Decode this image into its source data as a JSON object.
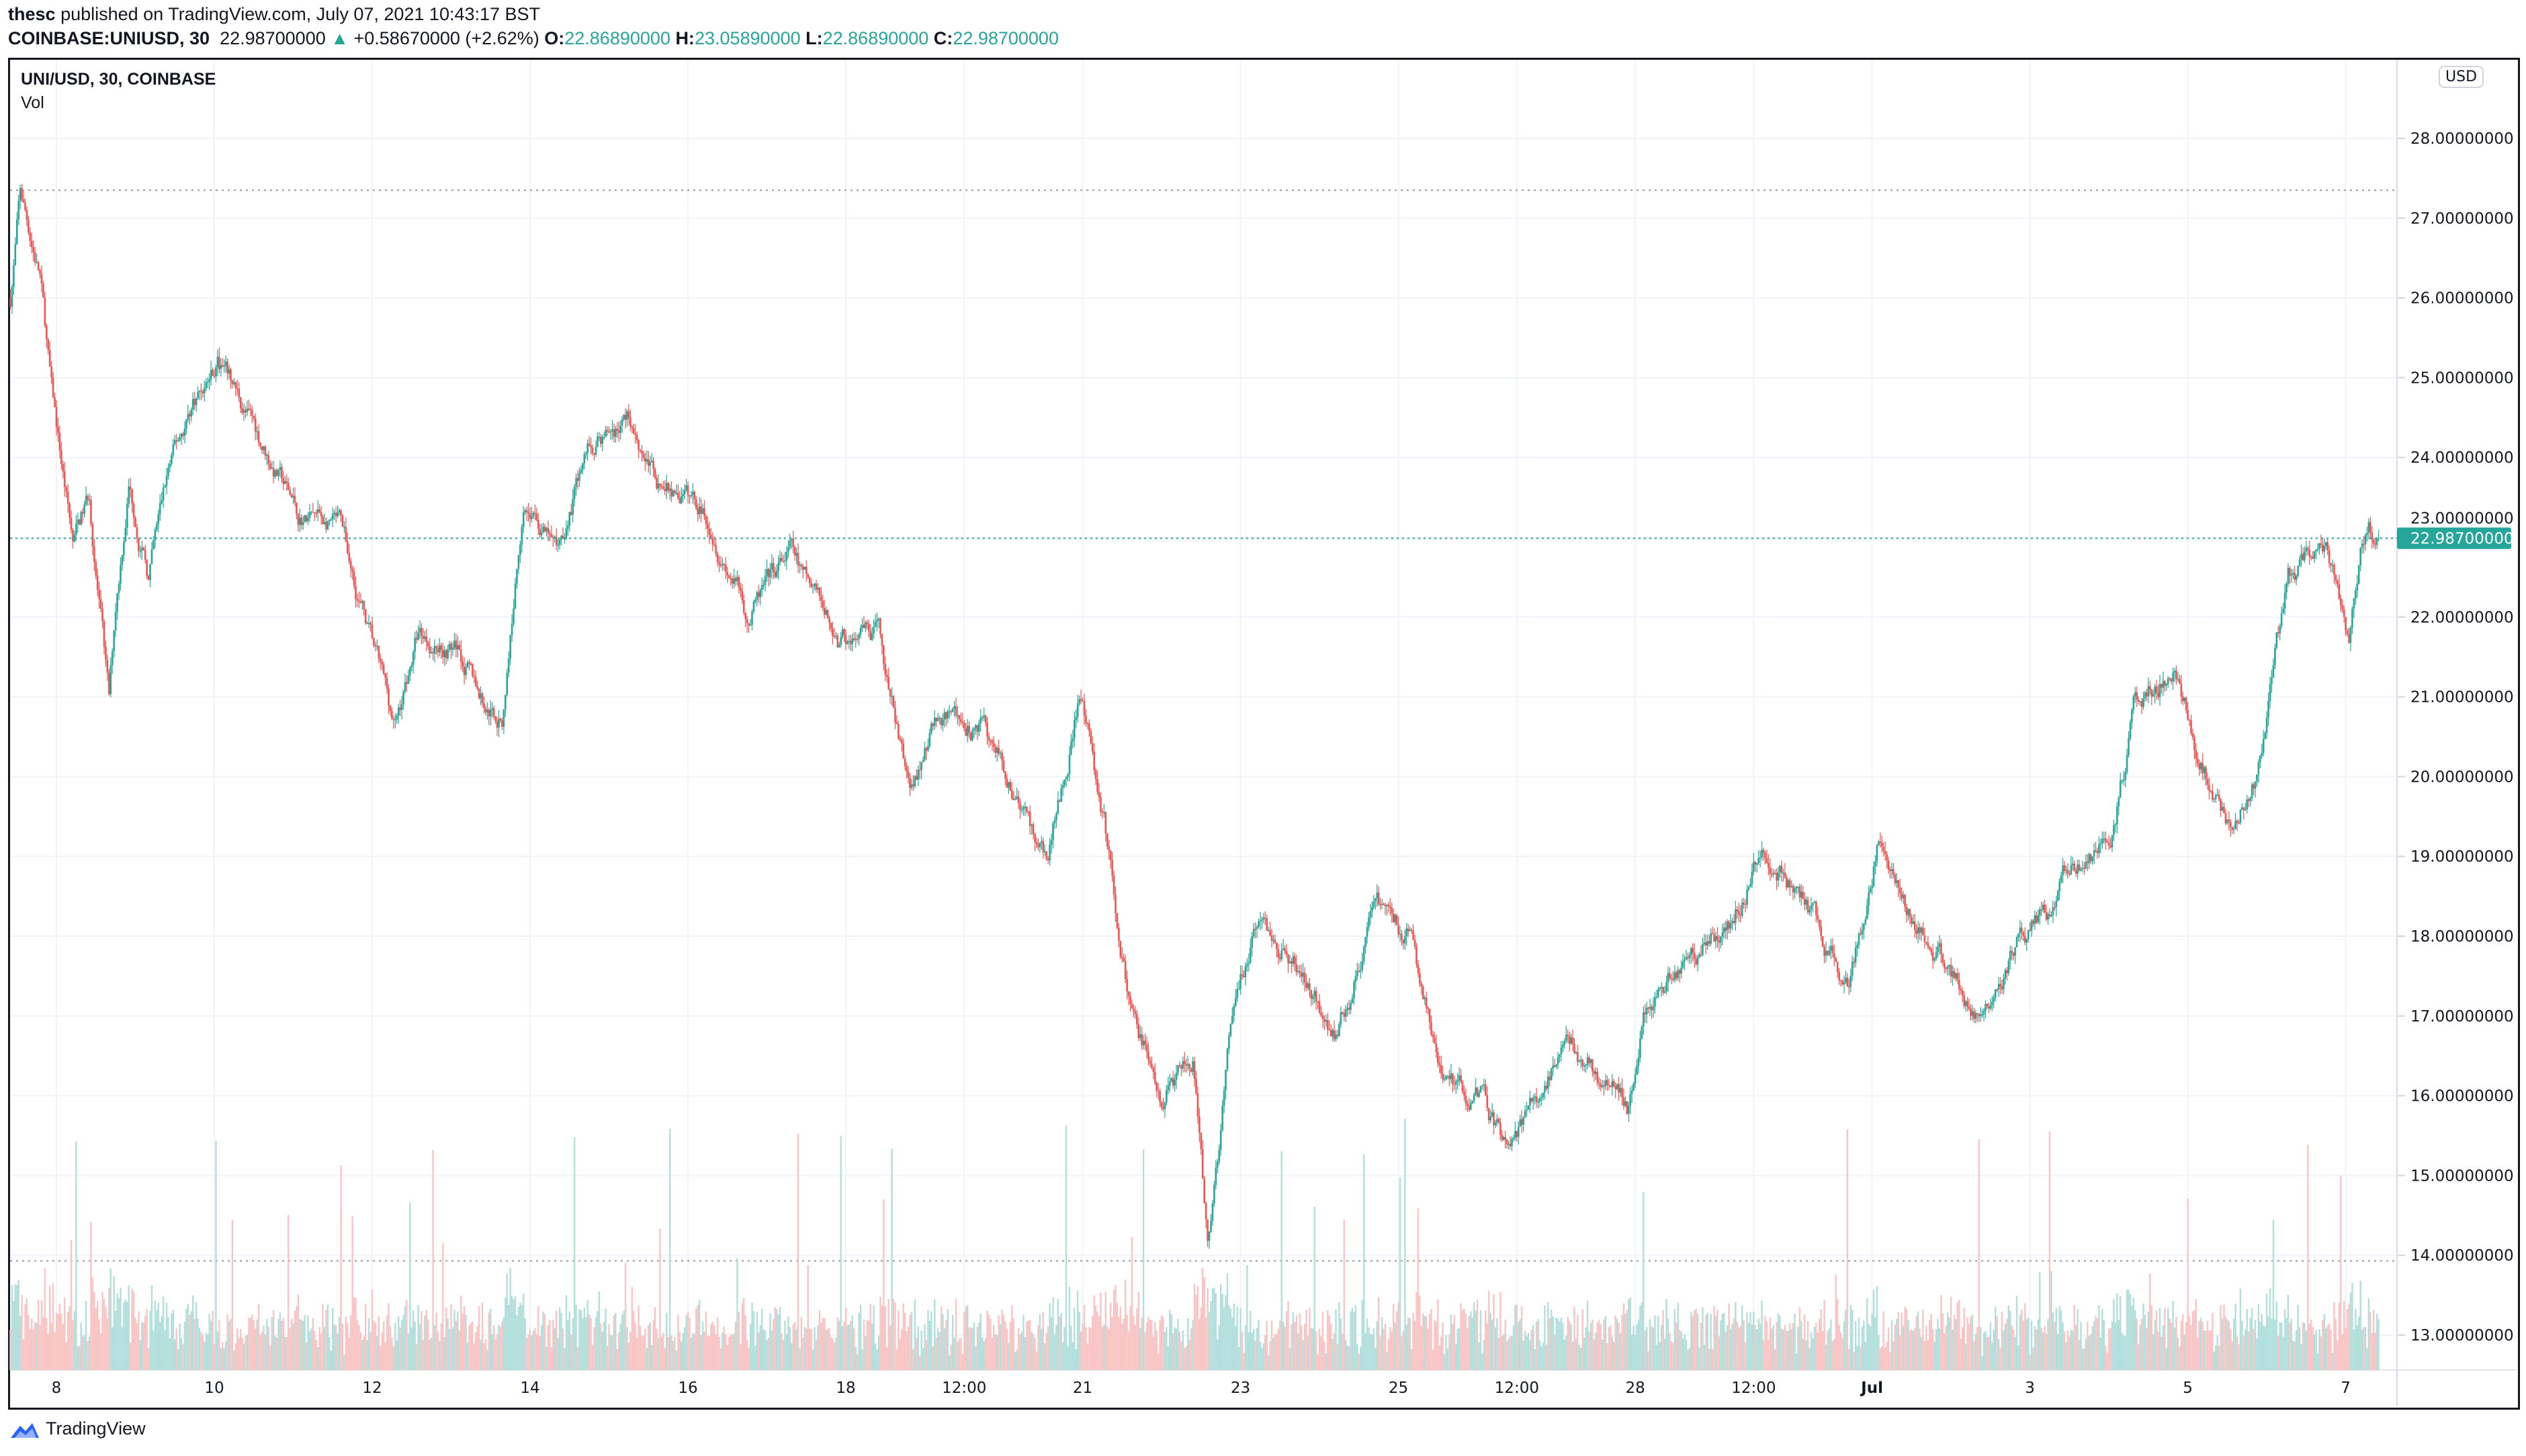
{
  "header": {
    "author": "thesc",
    "published": "published on TradingView.com, July 07, 2021 10:43:17 BST",
    "symbol": "COINBASE:UNIUSD, 30",
    "last": "22.98700000",
    "change": "+0.58670000 (+2.62%)",
    "o_label": "O:",
    "o": "22.86890000",
    "h_label": "H:",
    "h": "23.05890000",
    "l_label": "L:",
    "l": "22.86890000",
    "c_label": "C:",
    "c": "22.98700000",
    "direction_icon": "triangle-up-icon"
  },
  "legend": {
    "title": "UNI/USD, 30, COINBASE",
    "volume": "Vol"
  },
  "currency_badge": "USD",
  "footer": {
    "brand": "TradingView",
    "logo_icon": "tradingview-cloud-icon"
  },
  "colors": {
    "up": "#26a69a",
    "down": "#ef5350",
    "up_volume": "#b2dfdb",
    "down_volume": "#f8c5c4",
    "grid": "#f0f3fa"
  },
  "chart_data": {
    "type": "candlestick",
    "interval": "30 minutes",
    "ylim": [
      12.5,
      28.8
    ],
    "y_ticks": [
      "28.00000000",
      "27.00000000",
      "26.00000000",
      "25.00000000",
      "24.00000000",
      "23.00000000",
      "22.00000000",
      "21.00000000",
      "20.00000000",
      "19.00000000",
      "18.00000000",
      "17.00000000",
      "16.00000000",
      "15.00000000",
      "14.00000000",
      "13.00000000"
    ],
    "x_ticks": [
      {
        "label": "8",
        "t": "2021-06-08T00:00"
      },
      {
        "label": "10",
        "t": "2021-06-10T00:00"
      },
      {
        "label": "12",
        "t": "2021-06-12T00:00"
      },
      {
        "label": "14",
        "t": "2021-06-14T00:00"
      },
      {
        "label": "16",
        "t": "2021-06-16T00:00"
      },
      {
        "label": "18",
        "t": "2021-06-18T00:00"
      },
      {
        "label": "12:00",
        "t": "2021-06-19T12:00"
      },
      {
        "label": "21",
        "t": "2021-06-21T00:00"
      },
      {
        "label": "23",
        "t": "2021-06-23T00:00"
      },
      {
        "label": "25",
        "t": "2021-06-25T00:00"
      },
      {
        "label": "12:00",
        "t": "2021-06-26T12:00"
      },
      {
        "label": "28",
        "t": "2021-06-28T00:00"
      },
      {
        "label": "12:00",
        "t": "2021-06-29T12:00"
      },
      {
        "label": "Jul",
        "t": "2021-07-01T00:00"
      },
      {
        "label": "3",
        "t": "2021-07-03T00:00"
      },
      {
        "label": "5",
        "t": "2021-07-05T00:00"
      },
      {
        "label": "7",
        "t": "2021-07-07T00:00"
      }
    ],
    "last_price": 22.987,
    "last_price_label": "22.98700000",
    "range_high": 27.35,
    "range_low": 13.93,
    "price_path": [
      [
        "2021-06-07T10:00",
        26.0
      ],
      [
        "2021-06-07T13:00",
        27.3
      ],
      [
        "2021-06-07T19:00",
        26.3
      ],
      [
        "2021-06-07T22:30",
        24.8
      ],
      [
        "2021-06-08T05:00",
        22.9
      ],
      [
        "2021-06-08T10:00",
        23.5
      ],
      [
        "2021-06-08T16:00",
        20.9
      ],
      [
        "2021-06-08T18:00",
        22.1
      ],
      [
        "2021-06-08T22:00",
        23.7
      ],
      [
        "2021-06-09T04:00",
        22.5
      ],
      [
        "2021-06-09T10:00",
        23.8
      ],
      [
        "2021-06-09T17:30",
        24.7
      ],
      [
        "2021-06-10T01:00",
        25.2
      ],
      [
        "2021-06-10T13:00",
        24.3
      ],
      [
        "2021-06-11T01:30",
        23.3
      ],
      [
        "2021-06-11T14:00",
        23.1
      ],
      [
        "2021-06-11T21:00",
        22.1
      ],
      [
        "2021-06-12T07:00",
        20.6
      ],
      [
        "2021-06-12T14:00",
        21.8
      ],
      [
        "2021-06-13T02:30",
        21.6
      ],
      [
        "2021-06-13T10:00",
        20.9
      ],
      [
        "2021-06-13T15:30",
        20.7
      ],
      [
        "2021-06-13T22:00",
        23.5
      ],
      [
        "2021-06-14T08:00",
        22.8
      ],
      [
        "2021-06-14T17:30",
        24.1
      ],
      [
        "2021-06-15T06:00",
        24.5
      ],
      [
        "2021-06-15T15:30",
        23.7
      ],
      [
        "2021-06-16T06:30",
        23.3
      ],
      [
        "2021-06-16T18:30",
        22.0
      ],
      [
        "2021-06-17T07:00",
        22.8
      ],
      [
        "2021-06-17T21:30",
        21.7
      ],
      [
        "2021-06-18T10:00",
        21.7
      ],
      [
        "2021-06-18T19:30",
        19.8
      ],
      [
        "2021-06-19T03:00",
        20.7
      ],
      [
        "2021-06-19T17:30",
        20.6
      ],
      [
        "2021-06-20T03:30",
        19.8
      ],
      [
        "2021-06-20T13:00",
        18.9
      ],
      [
        "2021-06-20T23:00",
        21.0
      ],
      [
        "2021-06-21T06:30",
        19.5
      ],
      [
        "2021-06-21T14:00",
        17.2
      ],
      [
        "2021-06-21T23:30",
        16.0
      ],
      [
        "2021-06-22T09:30",
        16.4
      ],
      [
        "2021-06-22T14:00",
        14.0
      ],
      [
        "2021-06-22T21:30",
        17.0
      ],
      [
        "2021-06-23T05:00",
        18.2
      ],
      [
        "2021-06-23T14:30",
        17.8
      ],
      [
        "2021-06-24T05:30",
        16.8
      ],
      [
        "2021-06-24T17:30",
        18.4
      ],
      [
        "2021-06-25T03:30",
        18.0
      ],
      [
        "2021-06-25T13:00",
        16.2
      ],
      [
        "2021-06-26T01:30",
        16.0
      ],
      [
        "2021-06-26T09:00",
        15.3
      ],
      [
        "2021-06-26T16:00",
        15.8
      ],
      [
        "2021-06-27T04:30",
        16.7
      ],
      [
        "2021-06-27T21:30",
        15.8
      ],
      [
        "2021-06-28T02:30",
        17.1
      ],
      [
        "2021-06-28T17:00",
        17.8
      ],
      [
        "2021-06-29T05:30",
        18.2
      ],
      [
        "2021-06-29T15:00",
        19.1
      ],
      [
        "2021-06-30T03:30",
        18.4
      ],
      [
        "2021-06-30T17:00",
        17.3
      ],
      [
        "2021-07-01T01:30",
        19.1
      ],
      [
        "2021-07-01T16:00",
        18.0
      ],
      [
        "2021-07-02T07:00",
        17.1
      ],
      [
        "2021-07-02T19:00",
        17.8
      ],
      [
        "2021-07-03T07:30",
        18.4
      ],
      [
        "2021-07-03T12:30",
        18.9
      ],
      [
        "2021-07-04T00:30",
        19.1
      ],
      [
        "2021-07-04T08:00",
        20.9
      ],
      [
        "2021-07-04T20:00",
        21.4
      ],
      [
        "2021-07-05T03:30",
        20.2
      ],
      [
        "2021-07-05T13:00",
        19.3
      ],
      [
        "2021-07-05T20:30",
        20.0
      ],
      [
        "2021-07-06T06:30",
        22.5
      ],
      [
        "2021-07-06T18:30",
        22.9
      ],
      [
        "2021-07-07T01:00",
        21.8
      ],
      [
        "2021-07-07T07:00",
        23.3
      ],
      [
        "2021-07-07T10:00",
        22.987
      ]
    ]
  }
}
